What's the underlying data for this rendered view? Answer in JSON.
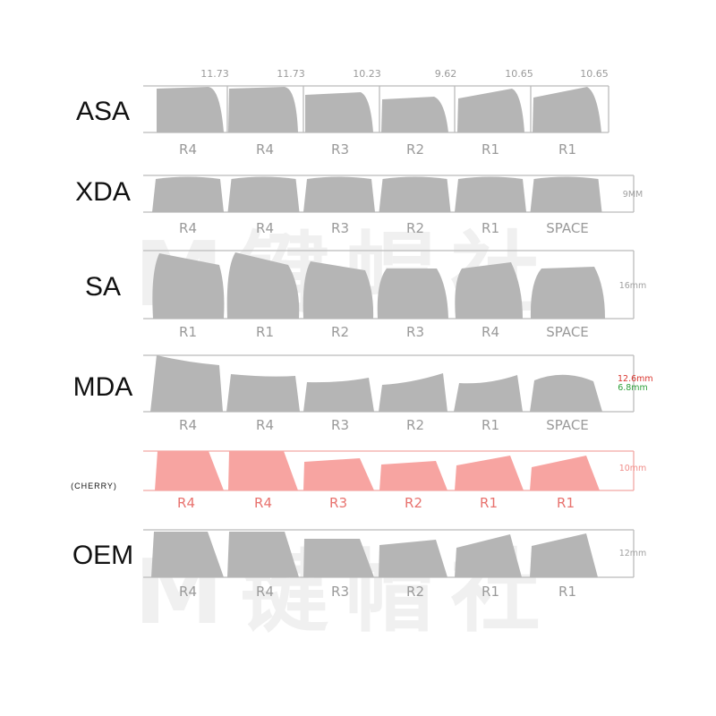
{
  "watermark": "M键帽社",
  "colors": {
    "key_fill": "#b5b5b5",
    "line": "#bbbbbb",
    "cherry_fill": "#f7a4a1",
    "cherry_line": "#f2a7a4",
    "cherry_label": "#e8726e",
    "mda_high": "#d9352e",
    "mda_low": "#2ea03a"
  },
  "profiles": [
    {
      "name": "ASA",
      "top_values": [
        "11.73",
        "11.73",
        "10.23",
        "9.62",
        "10.65",
        "10.65"
      ],
      "rows": [
        "R4",
        "R4",
        "R3",
        "R2",
        "R1",
        "R1"
      ],
      "dim_label": ""
    },
    {
      "name": "XDA",
      "rows": [
        "R4",
        "R4",
        "R3",
        "R2",
        "R1",
        "SPACE"
      ],
      "dim_label": "9MM"
    },
    {
      "name": "SA",
      "rows": [
        "R1",
        "R1",
        "R2",
        "R3",
        "R4",
        "SPACE"
      ],
      "dim_label": "16mm"
    },
    {
      "name": "MDA",
      "rows": [
        "R4",
        "R4",
        "R3",
        "R2",
        "R1",
        "SPACE"
      ],
      "dim_high": "12.6mm",
      "dim_low": "6.8mm"
    },
    {
      "name": "(CHERRY)",
      "rows": [
        "R4",
        "R4",
        "R3",
        "R2",
        "R1",
        "R1"
      ],
      "dim_label": "10mm"
    },
    {
      "name": "OEM",
      "rows": [
        "R4",
        "R4",
        "R3",
        "R2",
        "R1",
        "R1"
      ],
      "dim_label": "12mm"
    }
  ]
}
